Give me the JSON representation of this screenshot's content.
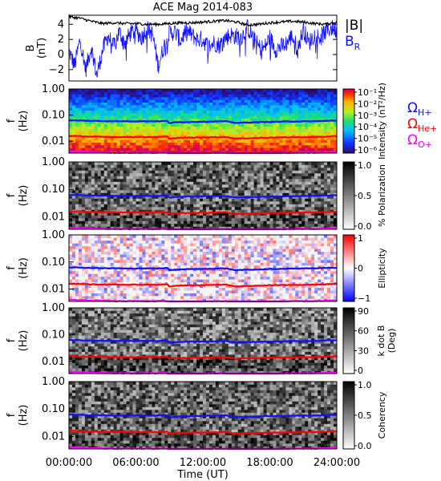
{
  "title": "ACE Mag 2014-083",
  "xlabel": "Time (UT)",
  "x_ticks": [
    "00:00:00",
    "06:00:00",
    "12:00:00",
    "18:00:00",
    "24:00:00"
  ],
  "freq_ticks": [
    "1.00",
    "0.10",
    "0.01"
  ],
  "freq_ylabel_top": "f",
  "freq_ylabel_bottom": "(Hz)",
  "colors": {
    "B_total": "#000000",
    "B_R": "#1010ff",
    "omega_H": "#1010ff",
    "omega_He": "#ff0000",
    "omega_O": "#ff00ff"
  },
  "chart_data": [
    {
      "type": "line",
      "name": "B field",
      "ylabel_top": "B",
      "ylabel_bottom": "(nT)",
      "ylim": [
        -3.5,
        5.2
      ],
      "yticks": [
        "4",
        "2",
        "0",
        "−2"
      ],
      "xlim_hours": [
        0,
        24
      ],
      "legend": [
        "|B|",
        "B",
        "R"
      ],
      "series": [
        {
          "name": "|B|",
          "x_hours": [
            0,
            1,
            2,
            3,
            4,
            5,
            6,
            7,
            8,
            9,
            10,
            11,
            12,
            13,
            14,
            15,
            16,
            17,
            18,
            19,
            20,
            21,
            22,
            23,
            24
          ],
          "values": [
            5.0,
            4.8,
            4.4,
            4.1,
            4.2,
            4.1,
            4.1,
            4.0,
            4.0,
            4.1,
            4.2,
            4.2,
            4.3,
            4.4,
            4.5,
            4.3,
            3.9,
            4.0,
            4.2,
            4.3,
            4.4,
            4.3,
            4.1,
            4.0,
            4.3
          ]
        },
        {
          "name": "BR",
          "x_hours": [
            0,
            0.5,
            1,
            1.5,
            2,
            2.5,
            3,
            3.5,
            4,
            4.5,
            5,
            5.5,
            6,
            6.5,
            7,
            7.5,
            8,
            8.5,
            9,
            9.5,
            10,
            10.5,
            11,
            11.5,
            12,
            12.5,
            13,
            13.5,
            14,
            14.5,
            15,
            15.5,
            16,
            16.5,
            17,
            17.5,
            18,
            18.5,
            19,
            19.5,
            20,
            20.5,
            21,
            21.5,
            22,
            22.5,
            23,
            23.5,
            24
          ],
          "values": [
            0.5,
            -1.5,
            2.0,
            -2.0,
            1.0,
            -2.8,
            0.5,
            2.5,
            1.0,
            3.0,
            1.5,
            2.8,
            3.2,
            2.2,
            3.5,
            2.6,
            -1.5,
            1.0,
            2.8,
            3.0,
            1.8,
            3.2,
            2.6,
            2.0,
            2.0,
            1.0,
            1.6,
            1.2,
            2.2,
            2.6,
            2.4,
            2.4,
            3.6,
            2.2,
            1.0,
            0.8,
            2.3,
            0.7,
            1.0,
            1.5,
            2.5,
            0.6,
            3.4,
            1.5,
            2.7,
            2.3,
            3.0,
            3.5,
            3.3
          ]
        }
      ]
    },
    {
      "type": "heatmap",
      "name": "Intensity spectrogram",
      "colorbar_label": "Intensity (nT²/Hz)",
      "colorbar_ticks": [
        "10⁻¹",
        "10⁻²",
        "10⁻³",
        "10⁻⁴",
        "10⁻⁵",
        "10⁻⁶"
      ],
      "legend": [
        "Ω",
        "H+",
        "Ω",
        "He+",
        "Ω",
        "O+"
      ],
      "ylim_hz": [
        0.0035,
        1.0
      ],
      "log_y": true
    },
    {
      "type": "heatmap",
      "name": "Polarization",
      "colorbar_label": "% Polarization",
      "colorbar_ticks": [
        "1.0",
        "0.5",
        "0.0"
      ],
      "ylim_hz": [
        0.0035,
        1.0
      ],
      "log_y": true
    },
    {
      "type": "heatmap",
      "name": "Ellipticity",
      "colorbar_label": "Ellipticity",
      "colorbar_ticks": [
        "1",
        "0",
        "−1"
      ],
      "ylim_hz": [
        0.0035,
        1.0
      ],
      "log_y": true
    },
    {
      "type": "heatmap",
      "name": "k dot B",
      "colorbar_label_top": "k dot B",
      "colorbar_label_bottom": "(Deg)",
      "colorbar_ticks": [
        "90",
        "60",
        "30",
        "0"
      ],
      "ylim_hz": [
        0.0035,
        1.0
      ],
      "log_y": true
    },
    {
      "type": "heatmap",
      "name": "Coherency",
      "colorbar_label": "Coherency",
      "colorbar_ticks": [
        "1.0",
        "0.5",
        "0.0"
      ],
      "ylim_hz": [
        0.0035,
        1.0
      ],
      "log_y": true
    },
    {
      "type": "line",
      "name": "Ion gyrofrequencies (overlaid on every spectrogram)",
      "x_hours": [
        0,
        2,
        4,
        6,
        8,
        8.8,
        9,
        10,
        12,
        14,
        15,
        16,
        18,
        20,
        22,
        24
      ],
      "series": [
        {
          "name": "ΩH+",
          "values_hz": [
            0.063,
            0.06,
            0.058,
            0.058,
            0.058,
            0.06,
            0.05,
            0.054,
            0.056,
            0.058,
            0.05,
            0.052,
            0.055,
            0.057,
            0.058,
            0.062
          ]
        },
        {
          "name": "ΩHe+",
          "values_hz": [
            0.016,
            0.015,
            0.0145,
            0.0145,
            0.0145,
            0.015,
            0.0125,
            0.0135,
            0.014,
            0.0145,
            0.0125,
            0.013,
            0.0138,
            0.0142,
            0.0145,
            0.0155
          ]
        },
        {
          "name": "ΩO+",
          "values_hz": [
            0.004,
            0.0038,
            0.0036,
            0.0036,
            0.0036,
            0.0037,
            0.0031,
            0.0034,
            0.0035,
            0.0036,
            0.0031,
            0.0033,
            0.0034,
            0.0036,
            0.0036,
            0.0039
          ]
        }
      ]
    }
  ]
}
